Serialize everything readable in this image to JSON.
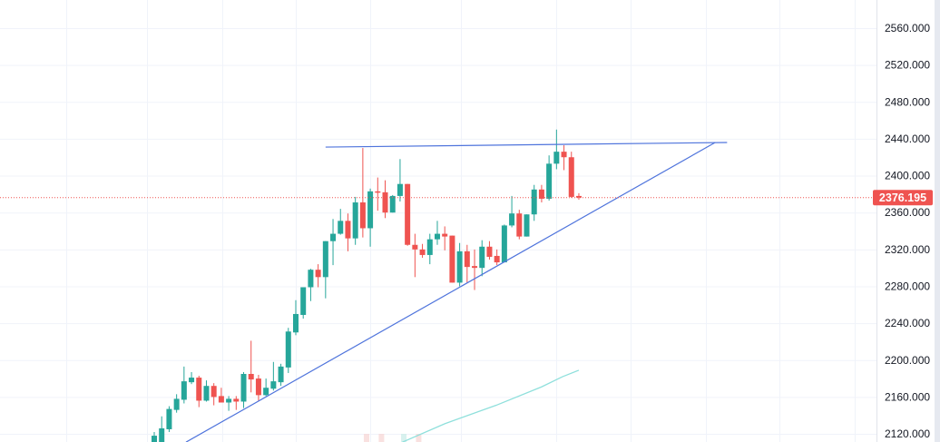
{
  "chart_data": {
    "type": "candlestick",
    "title": "",
    "xlabel": "",
    "ylabel": "",
    "ylim": [
      2113,
      2590
    ],
    "grid": true,
    "y_ticks": [
      "2560.000",
      "2520.000",
      "2480.000",
      "2440.000",
      "2400.000",
      "2360.000",
      "2320.000",
      "2280.000",
      "2240.000",
      "2200.000",
      "2160.000",
      "2120.000"
    ],
    "y_tick_values": [
      2560,
      2520,
      2480,
      2440,
      2400,
      2360,
      2320,
      2280,
      2240,
      2200,
      2160,
      2120
    ],
    "last_price": 2376.195,
    "last_price_label": "2376.195",
    "colors": {
      "up": "#26a69a",
      "down": "#ef5350",
      "trendline": "#4f74dc",
      "ma": "#8fe0dc",
      "grid": "#f0f3fa",
      "last": "#ef5350"
    },
    "candles": [
      [
        2110,
        2122,
        2100,
        2118
      ],
      [
        2110,
        2139,
        2105,
        2126
      ],
      [
        2125,
        2150,
        2122,
        2147
      ],
      [
        2146,
        2163,
        2143,
        2158
      ],
      [
        2157,
        2193,
        2153,
        2177
      ],
      [
        2176,
        2187,
        2174,
        2181
      ],
      [
        2181,
        2183,
        2149,
        2156
      ],
      [
        2156,
        2178,
        2155,
        2172
      ],
      [
        2172,
        2175,
        2151,
        2160
      ],
      [
        2161,
        2170,
        2154,
        2154
      ],
      [
        2154,
        2161,
        2145,
        2158
      ],
      [
        2158,
        2161,
        2146,
        2155
      ],
      [
        2155,
        2187,
        2148,
        2185
      ],
      [
        2185,
        2221,
        2165,
        2179
      ],
      [
        2180,
        2184,
        2156,
        2162
      ],
      [
        2162,
        2180,
        2161,
        2170
      ],
      [
        2169,
        2198,
        2167,
        2177
      ],
      [
        2176,
        2196,
        2172,
        2193
      ],
      [
        2192,
        2235,
        2186,
        2231
      ],
      [
        2230,
        2265,
        2227,
        2250
      ],
      [
        2249,
        2279,
        2245,
        2279
      ],
      [
        2279,
        2299,
        2264,
        2298
      ],
      [
        2298,
        2304,
        2279,
        2290
      ],
      [
        2290,
        2329,
        2267,
        2329
      ],
      [
        2329,
        2353,
        2303,
        2337
      ],
      [
        2337,
        2364,
        2336,
        2351
      ],
      [
        2351,
        2359,
        2318,
        2332
      ],
      [
        2332,
        2377,
        2325,
        2371
      ],
      [
        2371,
        2430,
        2333,
        2343
      ],
      [
        2343,
        2386,
        2323,
        2383
      ],
      [
        2383,
        2398,
        2362,
        2382
      ],
      [
        2382,
        2395,
        2354,
        2360
      ],
      [
        2360,
        2379,
        2360,
        2378
      ],
      [
        2378,
        2418,
        2372,
        2391
      ],
      [
        2391,
        2391,
        2324,
        2325
      ],
      [
        2325,
        2337,
        2290,
        2320
      ],
      [
        2320,
        2326,
        2311,
        2314
      ],
      [
        2314,
        2337,
        2304,
        2331
      ],
      [
        2331,
        2351,
        2325,
        2337
      ],
      [
        2337,
        2345,
        2319,
        2334
      ],
      [
        2335,
        2335,
        2284,
        2284
      ],
      [
        2284,
        2327,
        2280,
        2318
      ],
      [
        2318,
        2325,
        2284,
        2301
      ],
      [
        2302,
        2320,
        2276,
        2300
      ],
      [
        2300,
        2330,
        2291,
        2323
      ],
      [
        2323,
        2329,
        2309,
        2312
      ],
      [
        2313,
        2320,
        2303,
        2306
      ],
      [
        2306,
        2347,
        2306,
        2346
      ],
      [
        2346,
        2378,
        2344,
        2359
      ],
      [
        2359,
        2363,
        2331,
        2334
      ],
      [
        2334,
        2358,
        2334,
        2358
      ],
      [
        2358,
        2390,
        2351,
        2385
      ],
      [
        2385,
        2390,
        2371,
        2375
      ],
      [
        2375,
        2422,
        2373,
        2413
      ],
      [
        2413,
        2450,
        2407,
        2426
      ],
      [
        2426,
        2433,
        2406,
        2420
      ],
      [
        2420,
        2426,
        2376,
        2377
      ],
      [
        2378,
        2381,
        2374,
        2376.195
      ]
    ],
    "candle_format": [
      "open",
      "high",
      "low",
      "close"
    ],
    "trendlines": [
      {
        "name": "resistance",
        "points": [
          [
            23.0,
            2431
          ],
          [
            76.9,
            2436
          ]
        ]
      },
      {
        "name": "support",
        "points": [
          [
            4.26,
            2111
          ],
          [
            75.3,
            2436
          ]
        ]
      }
    ],
    "moving_average": [
      [
        33.3,
        2111
      ],
      [
        39,
        2131
      ],
      [
        45.9,
        2151
      ],
      [
        52,
        2171
      ],
      [
        54.8,
        2182
      ],
      [
        57,
        2189
      ]
    ],
    "volume": [
      {
        "index": 28.5,
        "dir": "down"
      },
      {
        "index": 30.5,
        "dir": "down"
      },
      {
        "index": 33.5,
        "dir": "up"
      },
      {
        "index": 35.5,
        "dir": "down"
      }
    ]
  }
}
